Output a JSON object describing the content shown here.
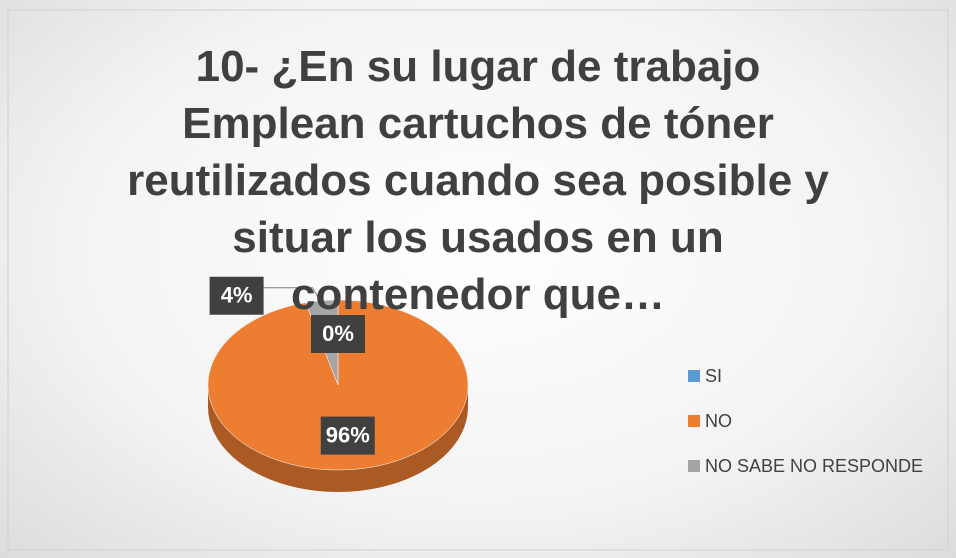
{
  "chart_data": {
    "type": "pie",
    "title": "10- ¿En su lugar de trabajo Emplean cartuchos de tóner reutilizados cuando sea posible y situar los usados en un contenedor que…",
    "categories": [
      "SI",
      "NO",
      "NO SABE NO RESPONDE"
    ],
    "values": [
      0,
      96,
      4
    ],
    "value_labels": [
      "0%",
      "96%",
      "4%"
    ],
    "colors": [
      "#5b9bd5",
      "#ed7d31",
      "#a5a5a5"
    ],
    "legend": "right"
  }
}
